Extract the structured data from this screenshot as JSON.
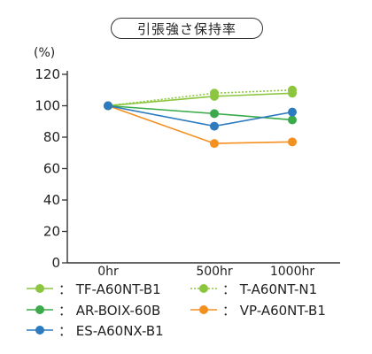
{
  "chart_data": {
    "type": "line",
    "title": "引張強さ保持率",
    "ylabel": "(%)",
    "xlabel": "",
    "categories": [
      "0hr",
      "500hr",
      "1000hr"
    ],
    "ylim": [
      0,
      120
    ],
    "yticks": [
      0,
      20,
      40,
      60,
      80,
      100,
      120
    ],
    "legend_position": "bottom",
    "series": [
      {
        "name": "TF-A60NT-B1",
        "values": [
          100,
          106,
          108
        ],
        "color": "#8cc63f",
        "dash": false
      },
      {
        "name": "T-A60NT-N1",
        "values": [
          100,
          108,
          110
        ],
        "color": "#8cc63f",
        "dash": true
      },
      {
        "name": "AR-BOIX-60B",
        "values": [
          100,
          95,
          91
        ],
        "color": "#3aaa4a",
        "dash": false
      },
      {
        "name": "VP-A60NT-B1",
        "values": [
          100,
          76,
          77
        ],
        "color": "#f39020",
        "dash": false
      },
      {
        "name": "ES-A60NX-B1",
        "values": [
          100,
          87,
          96
        ],
        "color": "#2c7bbf",
        "dash": false
      }
    ],
    "legend_separator": "："
  }
}
